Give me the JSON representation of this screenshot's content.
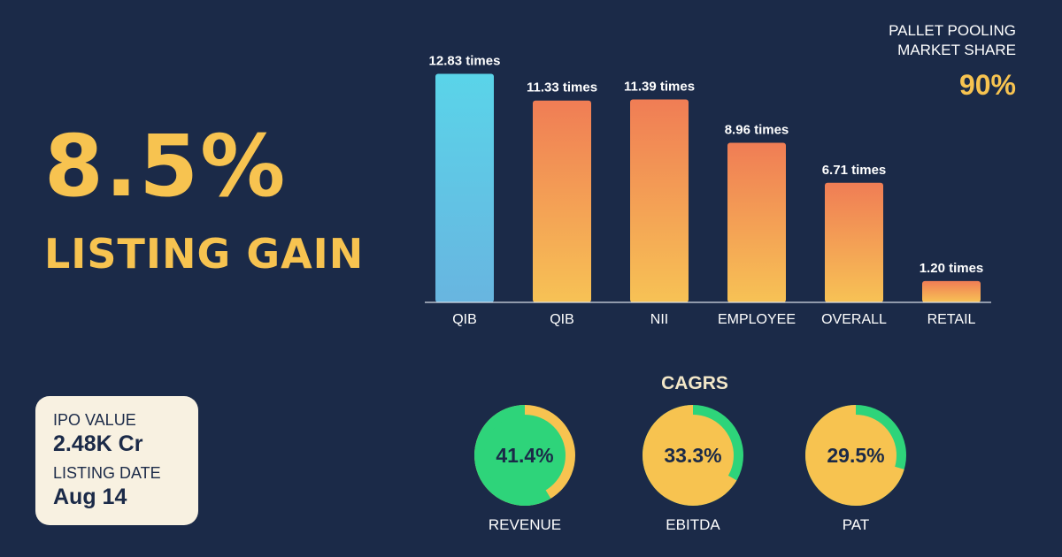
{
  "headline": {
    "value": "8.5%",
    "label": "LISTING GAIN"
  },
  "market_share": {
    "line1": "PALLET POOLING",
    "line2": "MARKET SHARE",
    "value": "90%"
  },
  "info_card": {
    "ipo_label": "IPO VALUE",
    "ipo_value": "2.48K Cr",
    "listing_label": "LISTING DATE",
    "listing_value": "Aug 14"
  },
  "chart_data": {
    "type": "bar",
    "categories": [
      "QIB",
      "QIB",
      "NII",
      "EMPLOYEE",
      "OVERALL",
      "RETAIL"
    ],
    "values": [
      12.83,
      11.33,
      11.39,
      8.96,
      6.71,
      1.2
    ],
    "data_labels": [
      "12.83 times",
      "11.33 times",
      "11.39 times",
      "8.96 times",
      "6.71 times",
      "1.20 times"
    ],
    "ylim": [
      0,
      13.5
    ],
    "grid": false,
    "colors": [
      "#5ad0e8",
      "#f5a455",
      "#f5a455",
      "#f5a455",
      "#f5a455",
      "#f5a455"
    ]
  },
  "cagrs": {
    "title": "CAGRS",
    "items": [
      {
        "name": "REVENUE",
        "value": "41.4%",
        "percent": 41.4
      },
      {
        "name": "EBITDA",
        "value": "33.3%",
        "percent": 33.3
      },
      {
        "name": "PAT",
        "value": "29.5%",
        "percent": 29.5
      }
    ]
  },
  "colors": {
    "background": "#1b2a48",
    "accent": "#f7c350",
    "green": "#2ed47a",
    "bar_blue": "#5ad0e8",
    "bar_orange": "#f08050"
  }
}
